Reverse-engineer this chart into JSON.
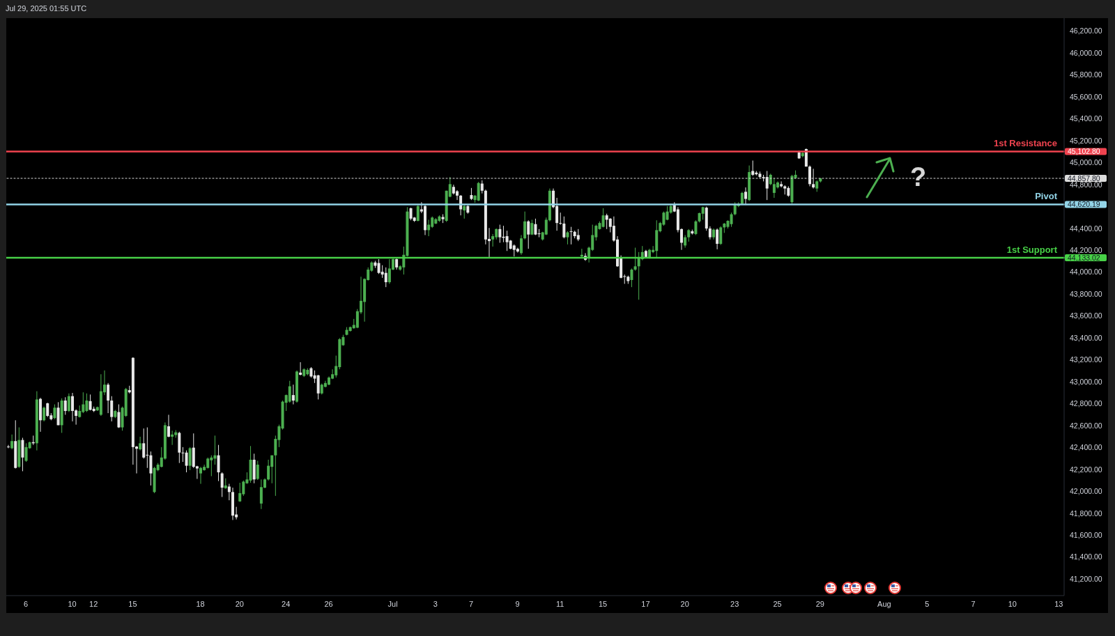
{
  "chart_data": {
    "type": "candlestick",
    "categories": [
      null,
      null,
      null,
      null,
      null,
      "6",
      null,
      null,
      null,
      null,
      null,
      null,
      null,
      null,
      null,
      null,
      null,
      null,
      "10",
      null,
      null,
      null,
      null,
      null,
      "12",
      null,
      null,
      null,
      null,
      null,
      null,
      null,
      null,
      null,
      null,
      "15",
      null,
      null,
      null,
      null,
      null,
      null,
      null,
      null,
      null,
      null,
      null,
      null,
      null,
      null,
      null,
      null,
      null,
      null,
      "18",
      null,
      null,
      null,
      null,
      null,
      null,
      null,
      null,
      null,
      null,
      "20",
      null,
      null,
      null,
      null,
      null,
      null,
      null,
      null,
      null,
      null,
      null,
      null,
      "24",
      null,
      null,
      null,
      null,
      null,
      null,
      null,
      null,
      null,
      null,
      null,
      "26",
      null,
      null,
      null,
      null,
      null,
      null,
      null,
      null,
      null,
      null,
      null,
      null,
      null,
      null,
      null,
      null,
      null,
      "Jul",
      null,
      null,
      null,
      null,
      null,
      null,
      null,
      null,
      null,
      null,
      null,
      "3",
      null,
      null,
      null,
      null,
      null,
      null,
      null,
      null,
      null,
      "7",
      null,
      null,
      null,
      null,
      null,
      null,
      null,
      null,
      null,
      null,
      null,
      null,
      "9",
      null,
      null,
      null,
      null,
      null,
      null,
      null,
      null,
      null,
      null,
      null,
      "11",
      null,
      null,
      null,
      null,
      null,
      null,
      null,
      null,
      null,
      null,
      null,
      "15",
      null,
      null,
      null,
      null,
      null,
      null,
      null,
      null,
      null,
      null,
      null,
      "17",
      null,
      null,
      null,
      null,
      null,
      null,
      null,
      null,
      null,
      null,
      "20",
      null,
      null,
      null,
      null,
      null,
      null,
      null,
      null,
      null,
      null,
      null,
      null,
      null,
      "23",
      null,
      null,
      null,
      null,
      null,
      null,
      null,
      null,
      null,
      null,
      null,
      "25",
      null,
      null,
      null,
      null,
      null,
      null,
      null,
      null,
      null,
      null,
      null,
      "29",
      null,
      null,
      null,
      null,
      null,
      null,
      null,
      null,
      null,
      null,
      null,
      null,
      null,
      null,
      null,
      null,
      null,
      "Aug",
      null,
      null,
      null,
      null,
      null,
      null,
      null,
      null,
      null,
      null,
      null,
      "5",
      null,
      null,
      null,
      null,
      null,
      null,
      null,
      null,
      null,
      null,
      null,
      null,
      "7",
      null,
      null,
      null,
      null,
      null,
      null,
      null,
      null,
      null,
      null,
      "10",
      null,
      null,
      null,
      null,
      null,
      null,
      null,
      null,
      null,
      null,
      null,
      null,
      "13",
      null
    ],
    "ohlc": [
      [
        42410,
        42425,
        42395,
        42405
      ],
      [
        42395,
        42520,
        42385,
        42460
      ],
      [
        42460,
        42650,
        42210,
        42215
      ],
      [
        42225,
        42585,
        42215,
        42470
      ],
      [
        42470,
        42490,
        42185,
        42310
      ],
      [
        42280,
        42440,
        42270,
        42405
      ],
      [
        42395,
        42455,
        42390,
        42450
      ],
      [
        42450,
        42510,
        42425,
        42440
      ],
      [
        42440,
        42915,
        42375,
        42840
      ],
      [
        42845,
        42855,
        42545,
        42650
      ],
      [
        42650,
        42775,
        42640,
        42765
      ],
      [
        42805,
        42810,
        42680,
        42690
      ],
      [
        42695,
        42715,
        42650,
        42660
      ],
      [
        42670,
        42795,
        42660,
        42765
      ],
      [
        42765,
        42815,
        42605,
        42605
      ],
      [
        42605,
        42850,
        42535,
        42830
      ],
      [
        42830,
        42860,
        42700,
        42735
      ],
      [
        42735,
        42895,
        42725,
        42870
      ],
      [
        42870,
        42900,
        42640,
        42735
      ],
      [
        42740,
        42750,
        42610,
        42690
      ],
      [
        42680,
        42785,
        42675,
        42735
      ],
      [
        42725,
        42905,
        42715,
        42795
      ],
      [
        42735,
        42895,
        42725,
        42830
      ],
      [
        42825,
        42885,
        42740,
        42745
      ],
      [
        42755,
        42775,
        42725,
        42735
      ],
      [
        42740,
        42775,
        42735,
        42770
      ],
      [
        42700,
        43070,
        42690,
        42915
      ],
      [
        42905,
        43105,
        42880,
        42975
      ],
      [
        42975,
        42990,
        42715,
        42830
      ],
      [
        42830,
        42870,
        42640,
        42680
      ],
      [
        42680,
        42745,
        42670,
        42735
      ],
      [
        42725,
        42795,
        42580,
        42585
      ],
      [
        42585,
        42775,
        42555,
        42765
      ],
      [
        42690,
        42945,
        42680,
        42935
      ],
      [
        42925,
        42965,
        42895,
        42905
      ],
      [
        43220,
        43225,
        42245,
        42405
      ],
      [
        42410,
        42415,
        42165,
        42390
      ],
      [
        42385,
        42500,
        42375,
        42440
      ],
      [
        42440,
        42575,
        42300,
        42310
      ],
      [
        42335,
        42585,
        42215,
        42330
      ],
      [
        42330,
        42365,
        42055,
        42165
      ],
      [
        41995,
        42225,
        41985,
        42215
      ],
      [
        42195,
        42260,
        42185,
        42245
      ],
      [
        42225,
        42405,
        42220,
        42310
      ],
      [
        42300,
        42630,
        42290,
        42605
      ],
      [
        42595,
        42700,
        42495,
        42500
      ],
      [
        42500,
        42555,
        42425,
        42520
      ],
      [
        42515,
        42560,
        42490,
        42540
      ],
      [
        42535,
        42545,
        42260,
        42355
      ],
      [
        42355,
        42405,
        42270,
        42350
      ],
      [
        42355,
        42375,
        42175,
        42235
      ],
      [
        42235,
        42405,
        42195,
        42395
      ],
      [
        42400,
        42530,
        42215,
        42225
      ],
      [
        42230,
        42235,
        42115,
        42210
      ],
      [
        42165,
        42225,
        42070,
        42215
      ],
      [
        42195,
        42245,
        42190,
        42225
      ],
      [
        42215,
        42310,
        42210,
        42300
      ],
      [
        42285,
        42330,
        42140,
        42310
      ],
      [
        42300,
        42510,
        42245,
        42330
      ],
      [
        42330,
        42425,
        42095,
        42175
      ],
      [
        42165,
        42175,
        41950,
        42035
      ],
      [
        42030,
        42120,
        42025,
        42055
      ],
      [
        42045,
        42070,
        41920,
        41995
      ],
      [
        41995,
        42035,
        41740,
        41780
      ],
      [
        41790,
        41860,
        41745,
        41765
      ],
      [
        41910,
        42080,
        41905,
        41985
      ],
      [
        41975,
        42100,
        41960,
        42090
      ],
      [
        42075,
        42175,
        42070,
        42110
      ],
      [
        42100,
        42415,
        42080,
        42290
      ],
      [
        42290,
        42345,
        42075,
        42110
      ],
      [
        42115,
        42280,
        42105,
        42245
      ],
      [
        41890,
        42110,
        41840,
        42040
      ],
      [
        42035,
        42120,
        42030,
        42110
      ],
      [
        42110,
        42290,
        42100,
        42235
      ],
      [
        42225,
        42330,
        42075,
        42330
      ],
      [
        42330,
        42510,
        41960,
        42480
      ],
      [
        42470,
        42610,
        42405,
        42595
      ],
      [
        42575,
        42830,
        42565,
        42820
      ],
      [
        42810,
        42885,
        42735,
        42880
      ],
      [
        42820,
        43010,
        42810,
        42960
      ],
      [
        42880,
        42975,
        42795,
        42830
      ],
      [
        42820,
        43105,
        42810,
        43095
      ],
      [
        43085,
        43180,
        43060,
        43065
      ],
      [
        43055,
        43125,
        43045,
        43115
      ],
      [
        43070,
        43125,
        43060,
        43110
      ],
      [
        43125,
        43135,
        43040,
        43050
      ],
      [
        43060,
        43105,
        42990,
        43030
      ],
      [
        43060,
        43065,
        42840,
        42895
      ],
      [
        42895,
        42985,
        42885,
        42975
      ],
      [
        42955,
        43010,
        42950,
        42990
      ],
      [
        42975,
        43050,
        42970,
        43040
      ],
      [
        43030,
        43115,
        43025,
        43070
      ],
      [
        43060,
        43240,
        43040,
        43145
      ],
      [
        43135,
        43400,
        43115,
        43390
      ],
      [
        43335,
        43430,
        43330,
        43410
      ],
      [
        43430,
        43500,
        43425,
        43475
      ],
      [
        43465,
        43505,
        43460,
        43500
      ],
      [
        43490,
        43575,
        43485,
        43520
      ],
      [
        43495,
        43665,
        43490,
        43645
      ],
      [
        43635,
        43960,
        43620,
        43740
      ],
      [
        43730,
        43945,
        43550,
        43940
      ],
      [
        43930,
        44045,
        43925,
        44025
      ],
      [
        44015,
        44100,
        44005,
        44090
      ],
      [
        44090,
        44105,
        44040,
        44060
      ],
      [
        44085,
        44120,
        43985,
        43995
      ],
      [
        44005,
        44065,
        43950,
        43980
      ],
      [
        43995,
        44045,
        43865,
        43910
      ],
      [
        43910,
        44120,
        43895,
        44035
      ],
      [
        44025,
        44130,
        44020,
        44120
      ],
      [
        44120,
        44125,
        44025,
        44045
      ],
      [
        44025,
        44065,
        44015,
        44055
      ],
      [
        44045,
        44235,
        43980,
        44160
      ],
      [
        44150,
        44595,
        44145,
        44555
      ],
      [
        44585,
        44590,
        44475,
        44490
      ],
      [
        44500,
        44505,
        44460,
        44470
      ],
      [
        44470,
        44615,
        44465,
        44605
      ],
      [
        44575,
        44640,
        44540,
        44555
      ],
      [
        44605,
        44615,
        44340,
        44385
      ],
      [
        44385,
        44480,
        44330,
        44435
      ],
      [
        44415,
        44510,
        44405,
        44500
      ],
      [
        44445,
        44495,
        44440,
        44485
      ],
      [
        44470,
        44520,
        44460,
        44510
      ],
      [
        44505,
        44530,
        44450,
        44485
      ],
      [
        44470,
        44745,
        44460,
        44745
      ],
      [
        44690,
        44870,
        44685,
        44805
      ],
      [
        44780,
        44800,
        44710,
        44720
      ],
      [
        44740,
        44750,
        44660,
        44700
      ],
      [
        44700,
        44705,
        44520,
        44575
      ],
      [
        44565,
        44615,
        44490,
        44605
      ],
      [
        44605,
        44615,
        44535,
        44545
      ],
      [
        44705,
        44770,
        44660,
        44670
      ],
      [
        44660,
        44705,
        44635,
        44700
      ],
      [
        44655,
        44825,
        44650,
        44815
      ],
      [
        44810,
        44840,
        44720,
        44745
      ],
      [
        44745,
        44755,
        44255,
        44300
      ],
      [
        44305,
        44405,
        44140,
        44285
      ],
      [
        44300,
        44350,
        44235,
        44330
      ],
      [
        44320,
        44400,
        44300,
        44395
      ],
      [
        44395,
        44435,
        44270,
        44320
      ],
      [
        44325,
        44425,
        44275,
        44315
      ],
      [
        44330,
        44380,
        44195,
        44275
      ],
      [
        44290,
        44295,
        44210,
        44215
      ],
      [
        44245,
        44255,
        44145,
        44205
      ],
      [
        44215,
        44225,
        44180,
        44190
      ],
      [
        44175,
        44340,
        44160,
        44310
      ],
      [
        44310,
        44555,
        44300,
        44465
      ],
      [
        44465,
        44475,
        44215,
        44345
      ],
      [
        44345,
        44480,
        44340,
        44450
      ],
      [
        44440,
        44490,
        44340,
        44345
      ],
      [
        44355,
        44395,
        44320,
        44350
      ],
      [
        44300,
        44370,
        44290,
        44365
      ],
      [
        44345,
        44500,
        44340,
        44480
      ],
      [
        44475,
        44765,
        44465,
        44745
      ],
      [
        44745,
        44765,
        44585,
        44595
      ],
      [
        44605,
        44680,
        44380,
        44450
      ],
      [
        44450,
        44545,
        44435,
        44445
      ],
      [
        44445,
        44510,
        44310,
        44320
      ],
      [
        44320,
        44375,
        44255,
        44365
      ],
      [
        44375,
        44415,
        44255,
        44370
      ],
      [
        44370,
        44380,
        44310,
        44330
      ],
      [
        44340,
        44395,
        44285,
        44300
      ],
      [
        44145,
        44215,
        44140,
        44160
      ],
      [
        44150,
        44175,
        44105,
        44115
      ],
      [
        44135,
        44235,
        44090,
        44225
      ],
      [
        44205,
        44435,
        44195,
        44340
      ],
      [
        44320,
        44435,
        44290,
        44425
      ],
      [
        44395,
        44465,
        44390,
        44450
      ],
      [
        44415,
        44585,
        44410,
        44520
      ],
      [
        44520,
        44535,
        44395,
        44480
      ],
      [
        44490,
        44495,
        44365,
        44415
      ],
      [
        44425,
        44510,
        44280,
        44290
      ],
      [
        44300,
        44330,
        44050,
        44055
      ],
      [
        44130,
        44155,
        43945,
        43950
      ],
      [
        43965,
        43980,
        43895,
        43960
      ],
      [
        43960,
        43970,
        43895,
        43920
      ],
      [
        43930,
        44035,
        43865,
        44025
      ],
      [
        44025,
        44225,
        44015,
        44055
      ],
      [
        44055,
        44185,
        43750,
        44130
      ],
      [
        44120,
        44240,
        44110,
        44185
      ],
      [
        44195,
        44205,
        44130,
        44140
      ],
      [
        44130,
        44215,
        44125,
        44205
      ],
      [
        44185,
        44240,
        44175,
        44205
      ],
      [
        44195,
        44475,
        44130,
        44385
      ],
      [
        44375,
        44460,
        44365,
        44450
      ],
      [
        44435,
        44555,
        44425,
        44545
      ],
      [
        44480,
        44605,
        44475,
        44555
      ],
      [
        44545,
        44625,
        44535,
        44605
      ],
      [
        44615,
        44640,
        44550,
        44555
      ],
      [
        44575,
        44595,
        44365,
        44385
      ],
      [
        44395,
        44400,
        44205,
        44270
      ],
      [
        44245,
        44340,
        44225,
        44320
      ],
      [
        44320,
        44395,
        44280,
        44385
      ],
      [
        44375,
        44390,
        44345,
        44355
      ],
      [
        44350,
        44475,
        44340,
        44465
      ],
      [
        44465,
        44545,
        44455,
        44540
      ],
      [
        44535,
        44600,
        44480,
        44595
      ],
      [
        44590,
        44600,
        44380,
        44400
      ],
      [
        44400,
        44420,
        44300,
        44320
      ],
      [
        44320,
        44400,
        44300,
        44390
      ],
      [
        44390,
        44400,
        44210,
        44260
      ],
      [
        44260,
        44420,
        44250,
        44410
      ],
      [
        44410,
        44450,
        44360,
        44445
      ],
      [
        44415,
        44475,
        44400,
        44470
      ],
      [
        44440,
        44545,
        44415,
        44530
      ],
      [
        44530,
        44640,
        44520,
        44615
      ],
      [
        44605,
        44640,
        44595,
        44625
      ],
      [
        44625,
        44735,
        44615,
        44725
      ],
      [
        44735,
        44775,
        44615,
        44670
      ],
      [
        44660,
        44975,
        44650,
        44915
      ],
      [
        44925,
        45020,
        44880,
        44890
      ],
      [
        44910,
        44925,
        44885,
        44895
      ],
      [
        44900,
        44920,
        44860,
        44870
      ],
      [
        44870,
        44890,
        44830,
        44860
      ],
      [
        44870,
        44925,
        44660,
        44765
      ],
      [
        44805,
        44900,
        44795,
        44890
      ],
      [
        44725,
        44860,
        44680,
        44805
      ],
      [
        44775,
        44830,
        44765,
        44820
      ],
      [
        44805,
        44830,
        44775,
        44785
      ],
      [
        44785,
        44795,
        44710,
        44765
      ],
      [
        44770,
        44785,
        44690,
        44700
      ],
      [
        44640,
        44890,
        44625,
        44880
      ],
      [
        44860,
        44930,
        44855,
        44890
      ],
      [
        45095,
        45110,
        45035,
        45040
      ],
      [
        45060,
        45095,
        45050,
        45090
      ],
      [
        45125,
        45130,
        44965,
        44965
      ],
      [
        44965,
        44975,
        44785,
        44805
      ],
      [
        44805,
        44945,
        44765,
        44775
      ],
      [
        44765,
        44840,
        44735,
        44830
      ],
      [
        44830,
        44860,
        44820,
        44857.8
      ],
      null,
      null,
      null,
      null,
      null,
      null,
      null,
      null,
      null,
      null,
      null,
      null,
      null,
      null,
      null,
      null,
      null,
      null,
      null,
      null,
      null,
      null,
      null,
      null,
      null,
      null,
      null,
      null,
      null,
      null,
      null,
      null,
      null,
      null,
      null,
      null,
      null,
      null,
      null,
      null,
      null,
      null,
      null,
      null,
      null,
      null,
      null,
      null,
      null,
      null,
      null,
      null,
      null,
      null,
      null,
      null,
      null,
      null,
      null,
      null,
      null,
      null,
      null,
      null,
      null,
      null,
      null,
      null
    ],
    "colors": [
      "#e8e8e8",
      "#4caf50",
      "#e8e8e8",
      "#4caf50",
      "#e8e8e8",
      "#4caf50",
      "#4caf50",
      "#e8e8e8",
      "#4caf50",
      "#e8e8e8",
      "#4caf50",
      "#e8e8e8",
      "#e8e8e8",
      "#4caf50",
      "#e8e8e8",
      "#4caf50",
      "#e8e8e8",
      "#4caf50",
      "#e8e8e8",
      "#e8e8e8",
      "#4caf50",
      "#4caf50",
      "#4caf50",
      "#e8e8e8",
      "#e8e8e8",
      "#4caf50",
      "#4caf50",
      "#4caf50",
      "#e8e8e8",
      "#e8e8e8",
      "#4caf50",
      "#e8e8e8",
      "#4caf50",
      "#4caf50",
      "#e8e8e8",
      "#e8e8e8",
      "#e8e8e8",
      "#4caf50",
      "#e8e8e8",
      "#e8e8e8",
      "#e8e8e8",
      "#4caf50",
      "#4caf50",
      "#4caf50",
      "#4caf50",
      "#e8e8e8",
      "#4caf50",
      "#4caf50",
      "#e8e8e8",
      "#e8e8e8",
      "#e8e8e8",
      "#4caf50",
      "#e8e8e8",
      "#e8e8e8",
      "#4caf50",
      "#4caf50",
      "#4caf50",
      "#4caf50",
      "#4caf50",
      "#e8e8e8",
      "#e8e8e8",
      "#4caf50",
      "#e8e8e8",
      "#e8e8e8",
      "#e8e8e8",
      "#4caf50",
      "#4caf50",
      "#4caf50",
      "#4caf50",
      "#e8e8e8",
      "#4caf50",
      "#4caf50",
      "#4caf50",
      "#4caf50",
      "#4caf50",
      "#4caf50",
      "#4caf50",
      "#4caf50",
      "#4caf50",
      "#4caf50",
      "#e8e8e8",
      "#4caf50",
      "#e8e8e8",
      "#4caf50",
      "#4caf50",
      "#e8e8e8",
      "#e8e8e8",
      "#e8e8e8",
      "#4caf50",
      "#4caf50",
      "#4caf50",
      "#4caf50",
      "#4caf50",
      "#4caf50",
      "#4caf50",
      "#4caf50",
      "#4caf50",
      "#4caf50",
      "#4caf50",
      "#4caf50",
      "#4caf50",
      "#4caf50",
      "#4caf50",
      "#e8e8e8",
      "#e8e8e8",
      "#e8e8e8",
      "#e8e8e8",
      "#4caf50",
      "#4caf50",
      "#e8e8e8",
      "#4caf50",
      "#4caf50",
      "#4caf50",
      "#e8e8e8",
      "#e8e8e8",
      "#4caf50",
      "#e8e8e8",
      "#e8e8e8",
      "#4caf50",
      "#4caf50",
      "#4caf50",
      "#4caf50",
      "#e8e8e8",
      "#4caf50",
      "#4caf50",
      "#e8e8e8",
      "#e8e8e8",
      "#e8e8e8",
      "#4caf50",
      "#e8e8e8",
      "#e8e8e8",
      "#4caf50",
      "#4caf50",
      "#e8e8e8",
      "#e8e8e8",
      "#e8e8e8",
      "#4caf50",
      "#4caf50",
      "#e8e8e8",
      "#e8e8e8",
      "#e8e8e8",
      "#e8e8e8",
      "#e8e8e8",
      "#e8e8e8",
      "#4caf50",
      "#4caf50",
      "#e8e8e8",
      "#4caf50",
      "#e8e8e8",
      "#e8e8e8",
      "#4caf50",
      "#4caf50",
      "#4caf50",
      "#e8e8e8",
      "#e8e8e8",
      "#e8e8e8",
      "#e8e8e8",
      "#4caf50",
      "#e8e8e8",
      "#e8e8e8",
      "#e8e8e8",
      "#4caf50",
      "#e8e8e8",
      "#4caf50",
      "#4caf50",
      "#4caf50",
      "#4caf50",
      "#4caf50",
      "#e8e8e8",
      "#e8e8e8",
      "#e8e8e8",
      "#e8e8e8",
      "#e8e8e8",
      "#e8e8e8",
      "#e8e8e8",
      "#4caf50",
      "#4caf50",
      "#4caf50",
      "#4caf50",
      "#e8e8e8",
      "#4caf50",
      "#4caf50",
      "#4caf50",
      "#4caf50",
      "#4caf50",
      "#4caf50",
      "#4caf50",
      "#e8e8e8",
      "#e8e8e8",
      "#e8e8e8",
      "#4caf50",
      "#4caf50",
      "#e8e8e8",
      "#4caf50",
      "#4caf50",
      "#4caf50",
      "#e8e8e8",
      "#e8e8e8",
      "#4caf50",
      "#e8e8e8",
      "#4caf50",
      "#4caf50",
      "#4caf50",
      "#4caf50",
      "#4caf50",
      "#4caf50",
      "#4caf50",
      "#e8e8e8",
      "#4caf50",
      "#e8e8e8",
      "#e8e8e8",
      "#e8e8e8",
      "#e8e8e8",
      "#e8e8e8",
      "#4caf50",
      "#4caf50",
      "#4caf50",
      "#e8e8e8",
      "#e8e8e8",
      "#e8e8e8",
      "#4caf50",
      "#4caf50",
      "#e8e8e8",
      "#4caf50",
      "#e8e8e8",
      "#e8e8e8",
      "#e8e8e8",
      "#4caf50",
      "#4caf50",
      null,
      null,
      null,
      null,
      null,
      null,
      null,
      null,
      null,
      null,
      null,
      null,
      null,
      null,
      null,
      null,
      null,
      null,
      null,
      null,
      null,
      null,
      null,
      null,
      null,
      null,
      null,
      null,
      null,
      null,
      null,
      null,
      null,
      null,
      null,
      null,
      null,
      null,
      null,
      null,
      null,
      null,
      null,
      null,
      null,
      null,
      null,
      null,
      null,
      null,
      null,
      null,
      null,
      null,
      null,
      null,
      null,
      null,
      null,
      null,
      null,
      null,
      null,
      null,
      null,
      null,
      null,
      null
    ],
    "ylim": [
      41050,
      46320
    ],
    "yticks": [
      {
        "value": 41200,
        "label": "41,200.00"
      },
      {
        "value": 41400,
        "label": "41,400.00"
      },
      {
        "value": 41600,
        "label": "41,600.00"
      },
      {
        "value": 41800,
        "label": "41,800.00"
      },
      {
        "value": 42000,
        "label": "42,000.00"
      },
      {
        "value": 42200,
        "label": "42,200.00"
      },
      {
        "value": 42400,
        "label": "42,400.00"
      },
      {
        "value": 42600,
        "label": "42,600.00"
      },
      {
        "value": 42800,
        "label": "42,800.00"
      },
      {
        "value": 43000,
        "label": "43,000.00"
      },
      {
        "value": 43200,
        "label": "43,200.00"
      },
      {
        "value": 43400,
        "label": "43,400.00"
      },
      {
        "value": 43600,
        "label": "43,600.00"
      },
      {
        "value": 43800,
        "label": "43,800.00"
      },
      {
        "value": 44000,
        "label": "44,000.00"
      },
      {
        "value": 44200,
        "label": "44,200.00"
      },
      {
        "value": 44400,
        "label": "44,400.00"
      },
      {
        "value": 44600,
        "label": null
      },
      {
        "value": 44800,
        "label": "44,800.00"
      },
      {
        "value": 45000,
        "label": "45,000.00"
      },
      {
        "value": 45200,
        "label": "45,200.00"
      },
      {
        "value": 45400,
        "label": "45,400.00"
      },
      {
        "value": 45600,
        "label": "45,600.00"
      },
      {
        "value": 45800,
        "label": "45,800.00"
      },
      {
        "value": 46000,
        "label": "46,000.00"
      },
      {
        "value": 46200,
        "label": "46,200.00"
      }
    ],
    "ref_lines": [
      {
        "axis": "y",
        "value": 45102.8,
        "label": "1st Resistance",
        "color": "#f0434f"
      },
      {
        "axis": "y",
        "value": 44857.8,
        "color": "#dcdcdc",
        "line_style": "dotted"
      },
      {
        "axis": "y",
        "value": 44620.19,
        "label": "Pivot",
        "color": "#93d5e8"
      },
      {
        "axis": "y",
        "value": 44133.02,
        "label": "1st Support",
        "color": "#47d147"
      }
    ],
    "annotations": [
      "Jul 29, 2025 01:55 UTC",
      "?",
      "45,102.80",
      "44,857.80",
      "44,620.19",
      "44,133.02"
    ]
  }
}
